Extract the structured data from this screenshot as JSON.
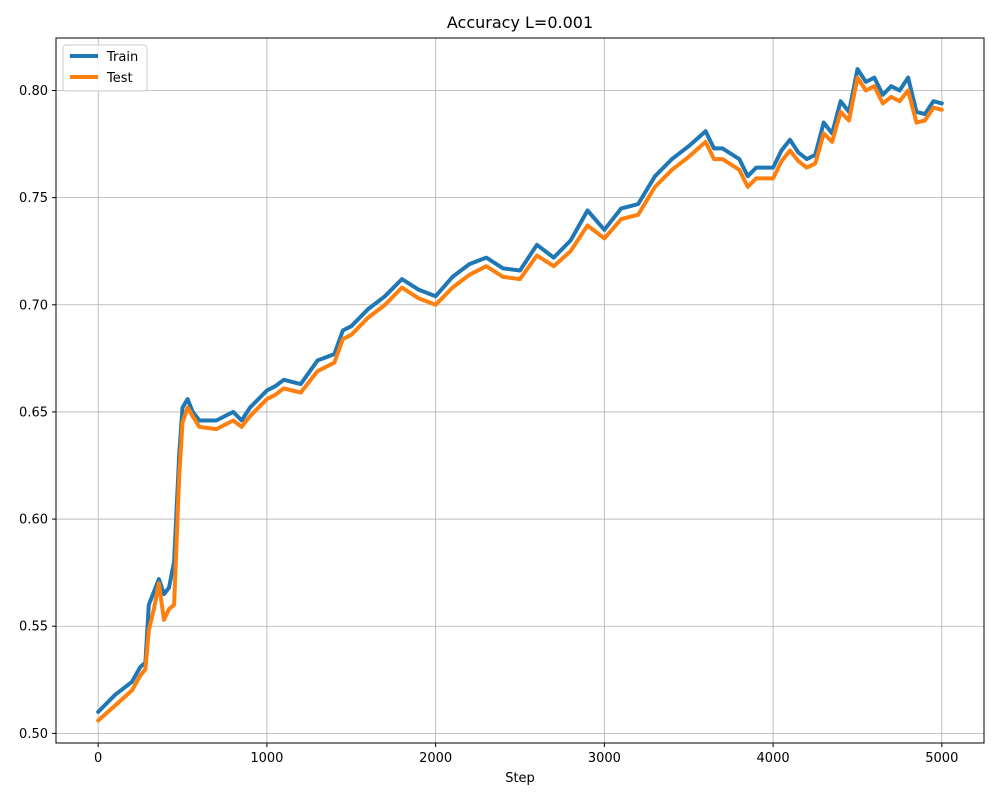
{
  "chart_data": {
    "type": "line",
    "title": "Accuracy L=0.001",
    "xlabel": "Step",
    "ylabel": "",
    "xlim": [
      -250,
      5250
    ],
    "ylim": [
      0.4955,
      0.8245
    ],
    "xticks": [
      0,
      1000,
      2000,
      3000,
      4000,
      5000
    ],
    "yticks": [
      0.5,
      0.55,
      0.6,
      0.65,
      0.7,
      0.75,
      0.8
    ],
    "xtick_labels": [
      "0",
      "1000",
      "2000",
      "3000",
      "4000",
      "5000"
    ],
    "ytick_labels": [
      "0.50",
      "0.55",
      "0.60",
      "0.65",
      "0.70",
      "0.75",
      "0.80"
    ],
    "grid": true,
    "legend_position": "top-left",
    "series": [
      {
        "name": "Train",
        "color": "#1f77b4",
        "x": [
          0,
          100,
          200,
          250,
          280,
          300,
          330,
          360,
          390,
          420,
          450,
          480,
          500,
          530,
          560,
          600,
          700,
          800,
          850,
          900,
          1000,
          1050,
          1100,
          1150,
          1200,
          1300,
          1400,
          1450,
          1500,
          1600,
          1700,
          1800,
          1900,
          2000,
          2100,
          2200,
          2300,
          2400,
          2500,
          2600,
          2700,
          2800,
          2900,
          3000,
          3100,
          3200,
          3300,
          3400,
          3500,
          3600,
          3650,
          3700,
          3800,
          3850,
          3900,
          4000,
          4050,
          4100,
          4150,
          4200,
          4250,
          4300,
          4350,
          4400,
          4450,
          4500,
          4550,
          4600,
          4650,
          4700,
          4750,
          4800,
          4850,
          4900,
          4950,
          5000
        ],
        "values": [
          0.51,
          0.518,
          0.524,
          0.531,
          0.533,
          0.56,
          0.566,
          0.572,
          0.565,
          0.568,
          0.58,
          0.63,
          0.652,
          0.656,
          0.65,
          0.646,
          0.646,
          0.65,
          0.646,
          0.652,
          0.66,
          0.662,
          0.665,
          0.664,
          0.663,
          0.674,
          0.677,
          0.688,
          0.69,
          0.698,
          0.704,
          0.712,
          0.707,
          0.704,
          0.713,
          0.719,
          0.722,
          0.717,
          0.716,
          0.728,
          0.722,
          0.73,
          0.744,
          0.735,
          0.745,
          0.747,
          0.76,
          0.768,
          0.774,
          0.781,
          0.773,
          0.773,
          0.768,
          0.76,
          0.764,
          0.764,
          0.772,
          0.777,
          0.771,
          0.768,
          0.77,
          0.785,
          0.78,
          0.795,
          0.79,
          0.81,
          0.804,
          0.806,
          0.798,
          0.802,
          0.8,
          0.806,
          0.79,
          0.789,
          0.795,
          0.794
        ]
      },
      {
        "name": "Test",
        "color": "#ff7f0e",
        "x": [
          0,
          100,
          200,
          250,
          280,
          300,
          330,
          360,
          390,
          420,
          450,
          480,
          500,
          530,
          560,
          600,
          700,
          800,
          850,
          900,
          1000,
          1050,
          1100,
          1150,
          1200,
          1300,
          1400,
          1450,
          1500,
          1600,
          1700,
          1800,
          1900,
          2000,
          2100,
          2200,
          2300,
          2400,
          2500,
          2600,
          2700,
          2800,
          2900,
          3000,
          3100,
          3200,
          3300,
          3400,
          3500,
          3600,
          3650,
          3700,
          3800,
          3850,
          3900,
          4000,
          4050,
          4100,
          4150,
          4200,
          4250,
          4300,
          4350,
          4400,
          4450,
          4500,
          4550,
          4600,
          4650,
          4700,
          4750,
          4800,
          4850,
          4900,
          4950,
          5000
        ],
        "values": [
          0.506,
          0.513,
          0.52,
          0.527,
          0.53,
          0.548,
          0.558,
          0.57,
          0.553,
          0.558,
          0.56,
          0.62,
          0.645,
          0.652,
          0.648,
          0.643,
          0.642,
          0.646,
          0.643,
          0.648,
          0.656,
          0.658,
          0.661,
          0.66,
          0.659,
          0.669,
          0.673,
          0.684,
          0.686,
          0.694,
          0.7,
          0.708,
          0.703,
          0.7,
          0.708,
          0.714,
          0.718,
          0.713,
          0.712,
          0.723,
          0.718,
          0.725,
          0.737,
          0.731,
          0.74,
          0.742,
          0.755,
          0.763,
          0.769,
          0.776,
          0.768,
          0.768,
          0.763,
          0.755,
          0.759,
          0.759,
          0.767,
          0.772,
          0.767,
          0.764,
          0.766,
          0.78,
          0.776,
          0.79,
          0.786,
          0.806,
          0.8,
          0.802,
          0.794,
          0.797,
          0.795,
          0.8,
          0.785,
          0.786,
          0.792,
          0.791
        ]
      }
    ]
  }
}
